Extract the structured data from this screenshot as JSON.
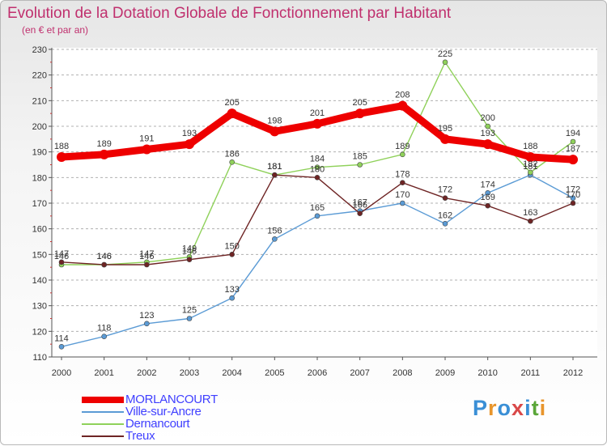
{
  "header": {
    "title": "Evolution de la Dotation Globale de Fonctionnement par Habitant",
    "subtitle": "(en € et par an)"
  },
  "colors": {
    "title": "#c0306e",
    "axis": "#555555",
    "grid": "#aaaaaa",
    "legend_text": "#4040ff"
  },
  "logo": {
    "letters": [
      "P",
      "r",
      "o",
      "x",
      "i",
      "t",
      "i"
    ]
  },
  "chart_data": {
    "type": "line",
    "title": "Evolution de la Dotation Globale de Fonctionnement par Habitant",
    "subtitle": "(en € et par an)",
    "xlabel": "",
    "ylabel": "",
    "x": [
      2000,
      2001,
      2002,
      2003,
      2004,
      2005,
      2006,
      2007,
      2008,
      2009,
      2010,
      2011,
      2012
    ],
    "ylim": [
      110,
      230
    ],
    "yticks": [
      110,
      120,
      130,
      140,
      150,
      160,
      170,
      180,
      190,
      200,
      210,
      220,
      230
    ],
    "grid": "horizontal dashed",
    "legend_position": "bottom-left",
    "series": [
      {
        "name": "MORLANCOURT",
        "color": "#ee0000",
        "emphasis": true,
        "values": [
          188,
          189,
          191,
          193,
          205,
          198,
          201,
          205,
          208,
          195,
          193,
          188,
          187
        ]
      },
      {
        "name": "Ville-sur-Ancre",
        "color": "#5b9bd5",
        "emphasis": false,
        "values": [
          114,
          118,
          123,
          125,
          133,
          156,
          165,
          167,
          170,
          162,
          174,
          181,
          172
        ]
      },
      {
        "name": "Dernancourt",
        "color": "#8fd15a",
        "emphasis": false,
        "values": [
          146,
          146,
          147,
          149,
          186,
          181,
          184,
          185,
          189,
          225,
          200,
          182,
          194
        ]
      },
      {
        "name": "Treux",
        "color": "#6e2424",
        "emphasis": false,
        "values": [
          147,
          146,
          146,
          148,
          150,
          181,
          180,
          166,
          178,
          172,
          169,
          163,
          170
        ]
      }
    ]
  }
}
